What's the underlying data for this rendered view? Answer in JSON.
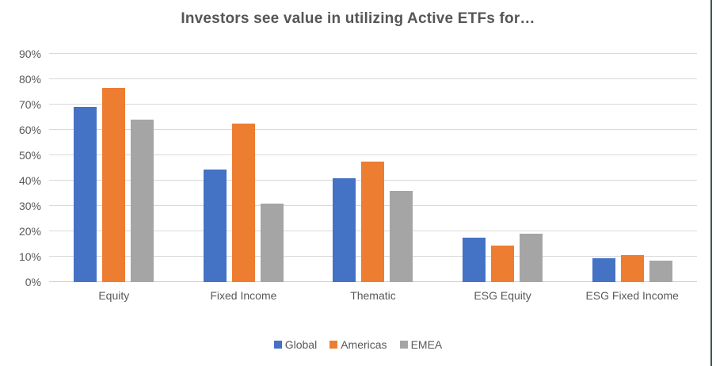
{
  "chart_data": {
    "type": "bar",
    "title": "Investors see value in utilizing Active ETFs for…",
    "categories": [
      "Equity",
      "Fixed Income",
      "Thematic",
      "ESG Equity",
      "ESG Fixed Income"
    ],
    "series": [
      {
        "name": "Global",
        "color": "#4472C4",
        "values": [
          69,
          44.5,
          41,
          17.5,
          9.5
        ]
      },
      {
        "name": "Americas",
        "color": "#ED7D31",
        "values": [
          76.5,
          62.5,
          47.5,
          14.5,
          10.5
        ]
      },
      {
        "name": "EMEA",
        "color": "#A5A5A5",
        "values": [
          64,
          31,
          36,
          19,
          8.5
        ]
      }
    ],
    "xlabel": "",
    "ylabel": "",
    "ylim": [
      0,
      90
    ],
    "ytick_step": 10,
    "ytick_labels": [
      "0%",
      "10%",
      "20%",
      "30%",
      "40%",
      "50%",
      "60%",
      "70%",
      "80%",
      "90%"
    ],
    "grid": true,
    "legend_position": "bottom"
  },
  "colors": {
    "background": "#FFFFFF",
    "gridline": "#D9D9D9",
    "axis_line": "#D2D2D2",
    "axis_text": "#595959",
    "title_text": "#565656",
    "frame_line": "#3D5B4A"
  }
}
